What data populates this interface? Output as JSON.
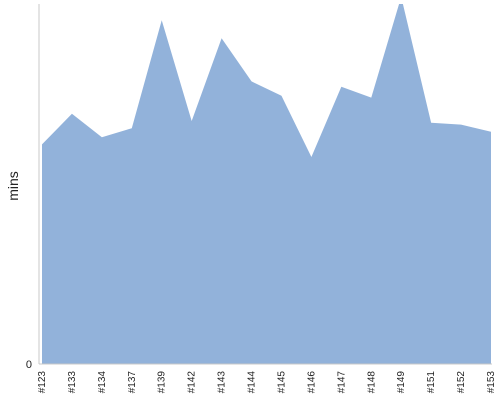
{
  "chart_data": {
    "type": "area",
    "title": "",
    "xlabel": "",
    "ylabel": "mins",
    "categories": [
      "#123",
      "#133",
      "#134",
      "#137",
      "#139",
      "#142",
      "#143",
      "#144",
      "#145",
      "#146",
      "#147",
      "#148",
      "#149",
      "#151",
      "#152",
      "#153"
    ],
    "values": [
      61,
      69.5,
      63,
      65.5,
      95.5,
      67.5,
      90.5,
      78.5,
      74.5,
      57.5,
      77,
      74,
      102,
      67,
      66.5,
      64.5
    ],
    "ylim": [
      0,
      100
    ],
    "y_ticks": [
      "0"
    ],
    "fill_color": "#92b2da",
    "grid": false,
    "legend": "none"
  }
}
